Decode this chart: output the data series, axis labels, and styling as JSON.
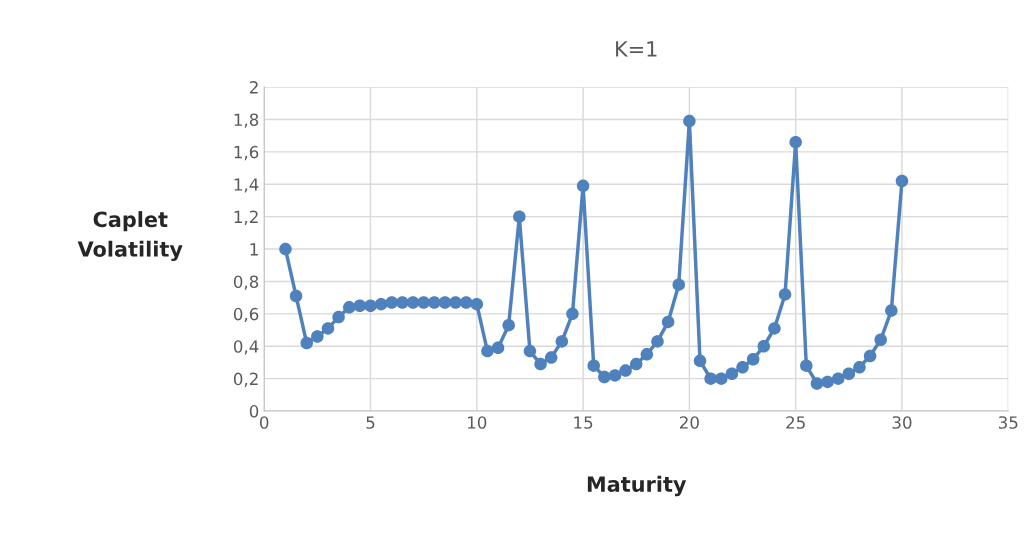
{
  "chart_data": {
    "type": "line",
    "title": "K=1",
    "xlabel": "Maturity",
    "ylabel": "Caplet\nVolatility",
    "x": [
      1,
      1.5,
      2,
      2.5,
      3,
      3.5,
      4,
      4.5,
      5,
      5.5,
      6,
      6.5,
      7,
      7.5,
      8,
      8.5,
      9,
      9.5,
      10,
      10.5,
      11,
      11.5,
      12,
      12.5,
      13,
      13.5,
      14,
      14.5,
      15,
      15.5,
      16,
      16.5,
      17,
      17.5,
      18,
      18.5,
      19,
      19.5,
      20,
      20.5,
      21,
      21.5,
      22,
      22.5,
      23,
      23.5,
      24,
      24.5,
      25,
      25.5,
      26,
      26.5,
      27,
      27.5,
      28,
      28.5,
      29,
      29.5,
      30
    ],
    "series": [
      {
        "color": "#4f81bd",
        "values": [
          1.0,
          0.71,
          0.42,
          0.46,
          0.51,
          0.58,
          0.64,
          0.65,
          0.65,
          0.66,
          0.67,
          0.67,
          0.67,
          0.67,
          0.67,
          0.67,
          0.67,
          0.67,
          0.66,
          0.37,
          0.39,
          0.53,
          1.2,
          0.37,
          0.29,
          0.33,
          0.43,
          0.6,
          1.39,
          0.28,
          0.21,
          0.22,
          0.25,
          0.29,
          0.35,
          0.43,
          0.55,
          0.78,
          1.79,
          0.31,
          0.2,
          0.2,
          0.23,
          0.27,
          0.32,
          0.4,
          0.51,
          0.72,
          1.66,
          0.28,
          0.17,
          0.18,
          0.2,
          0.23,
          0.27,
          0.34,
          0.44,
          0.62,
          1.42
        ]
      }
    ],
    "xlim": [
      0,
      35
    ],
    "xticks": [
      0,
      5,
      10,
      15,
      20,
      25,
      30,
      35
    ],
    "ylim": [
      0,
      2
    ],
    "yticks": [
      0,
      {
        "value": 0.2,
        "label": "0,2"
      },
      {
        "value": 0.4,
        "label": "0,4"
      },
      {
        "value": 0.6,
        "label": "0,6"
      },
      {
        "value": 0.8,
        "label": "0,8"
      },
      1,
      {
        "value": 1.2,
        "label": "1,2"
      },
      {
        "value": 1.4,
        "label": "1,4"
      },
      {
        "value": 1.6,
        "label": "1,6"
      },
      {
        "value": 1.8,
        "label": "1,8"
      },
      2
    ],
    "grid": true,
    "marker": "circle",
    "line_style": "solid"
  }
}
